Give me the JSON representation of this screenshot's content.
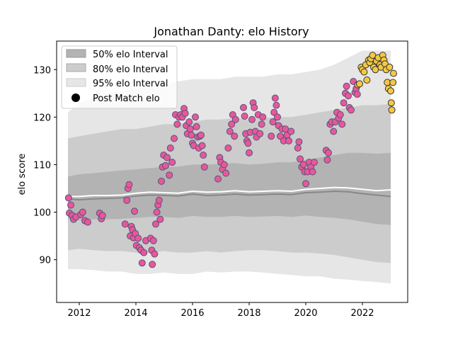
{
  "chart_data": {
    "type": "scatter",
    "title": "Jonathan Danty: elo History",
    "xlabel": "",
    "ylabel": "elo score",
    "xlim": [
      2011.2,
      2023.6
    ],
    "ylim": [
      81,
      136
    ],
    "x_ticks": [
      2012,
      2014,
      2016,
      2018,
      2020,
      2022
    ],
    "y_ticks": [
      90,
      100,
      110,
      120,
      130
    ],
    "legend": {
      "placement": "top-left",
      "entries": [
        "50% elo Interval",
        "80% elo Interval",
        "95% elo Interval",
        "Post Match elo"
      ]
    },
    "colors": {
      "band50": "#b3b3b3",
      "band80": "#cccccc",
      "band95": "#e6e6e6",
      "median_line": "#888888",
      "mean_line": "#ffffff",
      "point_fill": "#e8579b",
      "point_fill_recent": "#f4c842",
      "point_edge": "#555577"
    },
    "intervals": {
      "x": [
        2011.6,
        2012.0,
        2012.5,
        2013.0,
        2013.5,
        2014.0,
        2014.5,
        2015.0,
        2015.5,
        2016.0,
        2016.5,
        2017.0,
        2017.5,
        2018.0,
        2018.5,
        2019.0,
        2019.5,
        2020.0,
        2020.5,
        2021.0,
        2021.5,
        2022.0,
        2022.5,
        2023.0
      ],
      "median": [
        102.8,
        102.6,
        102.8,
        102.9,
        103.0,
        103.4,
        103.6,
        103.5,
        103.4,
        103.8,
        103.5,
        103.6,
        103.8,
        103.6,
        103.7,
        103.8,
        103.7,
        104.1,
        104.2,
        104.4,
        104.3,
        103.9,
        103.6,
        103.3
      ],
      "mean": [
        103.3,
        103.3,
        103.5,
        103.5,
        103.6,
        104.0,
        104.2,
        104.1,
        104.0,
        104.4,
        104.2,
        104.3,
        104.5,
        104.3,
        104.4,
        104.5,
        104.4,
        104.8,
        105.0,
        105.2,
        105.1,
        104.8,
        104.5,
        104.7
      ],
      "lo50": [
        98.5,
        98.3,
        98.5,
        98.5,
        98.6,
        98.8,
        99.0,
        99.0,
        98.8,
        99.2,
        99.0,
        99.0,
        99.2,
        99.0,
        99.1,
        99.2,
        99.0,
        99.3,
        99.0,
        98.8,
        98.5,
        98.0,
        97.5,
        97.3
      ],
      "hi50": [
        107.5,
        108.0,
        108.2,
        108.5,
        108.8,
        109.0,
        109.3,
        109.5,
        109.6,
        110.0,
        110.0,
        110.2,
        110.3,
        110.0,
        110.2,
        110.5,
        110.5,
        111.0,
        111.5,
        112.0,
        112.5,
        112.5,
        112.3,
        112.5
      ],
      "lo80": [
        92.0,
        92.3,
        92.0,
        91.8,
        91.8,
        91.5,
        91.5,
        91.8,
        91.5,
        91.5,
        91.8,
        91.5,
        91.8,
        92.0,
        92.0,
        91.8,
        91.5,
        91.5,
        91.3,
        91.0,
        90.5,
        90.0,
        89.5,
        89.3
      ],
      "hi80": [
        115.5,
        116.0,
        116.5,
        117.0,
        117.5,
        117.5,
        118.0,
        118.5,
        118.5,
        119.0,
        119.5,
        119.5,
        119.8,
        119.5,
        119.8,
        120.0,
        120.0,
        120.5,
        121.0,
        121.5,
        122.0,
        122.5,
        122.5,
        122.8
      ],
      "lo95": [
        88.0,
        88.0,
        87.8,
        87.5,
        87.5,
        87.0,
        87.0,
        87.3,
        87.0,
        87.0,
        87.5,
        87.3,
        87.5,
        87.5,
        87.3,
        87.0,
        86.8,
        86.5,
        86.5,
        86.0,
        85.8,
        85.5,
        85.3,
        85.0
      ],
      "hi95": [
        121.0,
        123.0,
        124.0,
        125.0,
        125.5,
        126.0,
        126.5,
        127.0,
        127.5,
        128.0,
        128.0,
        128.0,
        128.5,
        128.5,
        128.5,
        129.0,
        129.0,
        129.5,
        130.0,
        131.0,
        132.5,
        134.0,
        134.0,
        134.0
      ]
    },
    "points": [
      [
        2011.62,
        103.0
      ],
      [
        2011.65,
        99.8
      ],
      [
        2011.7,
        101.5
      ],
      [
        2011.75,
        99.3
      ],
      [
        2011.8,
        98.5
      ],
      [
        2011.88,
        99.0
      ],
      [
        2012.05,
        99.5
      ],
      [
        2012.12,
        100.0
      ],
      [
        2012.2,
        98.2
      ],
      [
        2012.3,
        97.9
      ],
      [
        2012.72,
        99.8
      ],
      [
        2012.78,
        98.6
      ],
      [
        2012.82,
        99.3
      ],
      [
        2013.62,
        97.5
      ],
      [
        2013.68,
        102.5
      ],
      [
        2013.72,
        105.0
      ],
      [
        2013.76,
        105.8
      ],
      [
        2013.8,
        95.0
      ],
      [
        2013.84,
        97.0
      ],
      [
        2013.88,
        96.3
      ],
      [
        2013.92,
        94.6
      ],
      [
        2013.95,
        100.2
      ],
      [
        2013.98,
        95.5
      ],
      [
        2014.02,
        93.0
      ],
      [
        2014.08,
        94.5
      ],
      [
        2014.12,
        92.5
      ],
      [
        2014.18,
        92.0
      ],
      [
        2014.22,
        89.3
      ],
      [
        2014.28,
        91.5
      ],
      [
        2014.35,
        94.0
      ],
      [
        2014.52,
        94.5
      ],
      [
        2014.56,
        92.0
      ],
      [
        2014.58,
        89.0
      ],
      [
        2014.62,
        94.0
      ],
      [
        2014.66,
        91.2
      ],
      [
        2014.7,
        97.5
      ],
      [
        2014.74,
        100.0
      ],
      [
        2014.78,
        101.5
      ],
      [
        2014.82,
        102.5
      ],
      [
        2014.86,
        98.5
      ],
      [
        2014.9,
        106.5
      ],
      [
        2014.94,
        109.5
      ],
      [
        2014.98,
        112.0
      ],
      [
        2015.05,
        109.8
      ],
      [
        2015.1,
        111.5
      ],
      [
        2015.18,
        107.8
      ],
      [
        2015.22,
        113.5
      ],
      [
        2015.28,
        110.5
      ],
      [
        2015.35,
        115.5
      ],
      [
        2015.4,
        120.5
      ],
      [
        2015.46,
        118.5
      ],
      [
        2015.52,
        120.0
      ],
      [
        2015.58,
        120.5
      ],
      [
        2015.64,
        120.0
      ],
      [
        2015.7,
        121.8
      ],
      [
        2015.74,
        120.8
      ],
      [
        2015.78,
        118.2
      ],
      [
        2015.82,
        116.5
      ],
      [
        2015.88,
        119.0
      ],
      [
        2015.92,
        117.5
      ],
      [
        2015.96,
        116.2
      ],
      [
        2016.0,
        114.5
      ],
      [
        2016.04,
        114.0
      ],
      [
        2016.1,
        120.0
      ],
      [
        2016.14,
        118.0
      ],
      [
        2016.18,
        115.8
      ],
      [
        2016.22,
        113.5
      ],
      [
        2016.26,
        116.0
      ],
      [
        2016.3,
        116.2
      ],
      [
        2016.34,
        114.0
      ],
      [
        2016.38,
        112.0
      ],
      [
        2016.42,
        109.5
      ],
      [
        2016.9,
        107.0
      ],
      [
        2016.96,
        111.5
      ],
      [
        2017.0,
        110.5
      ],
      [
        2017.06,
        109.0
      ],
      [
        2017.12,
        110.0
      ],
      [
        2017.18,
        108.2
      ],
      [
        2017.26,
        113.5
      ],
      [
        2017.32,
        117.0
      ],
      [
        2017.38,
        118.5
      ],
      [
        2017.42,
        120.5
      ],
      [
        2017.48,
        116.0
      ],
      [
        2017.52,
        119.5
      ],
      [
        2017.8,
        122.0
      ],
      [
        2017.84,
        120.2
      ],
      [
        2017.88,
        116.5
      ],
      [
        2017.92,
        115.0
      ],
      [
        2017.96,
        114.5
      ],
      [
        2018.0,
        112.5
      ],
      [
        2018.04,
        116.8
      ],
      [
        2018.1,
        119.5
      ],
      [
        2018.14,
        123.0
      ],
      [
        2018.18,
        122.0
      ],
      [
        2018.22,
        117.0
      ],
      [
        2018.26,
        115.8
      ],
      [
        2018.32,
        120.5
      ],
      [
        2018.38,
        116.5
      ],
      [
        2018.44,
        118.5
      ],
      [
        2018.48,
        120.0
      ],
      [
        2018.78,
        116.0
      ],
      [
        2018.84,
        119.0
      ],
      [
        2018.88,
        121.0
      ],
      [
        2018.92,
        124.0
      ],
      [
        2018.96,
        122.5
      ],
      [
        2019.0,
        120.0
      ],
      [
        2019.04,
        118.2
      ],
      [
        2019.1,
        116.0
      ],
      [
        2019.16,
        117.5
      ],
      [
        2019.22,
        115.0
      ],
      [
        2019.28,
        117.5
      ],
      [
        2019.34,
        116.2
      ],
      [
        2019.4,
        115.0
      ],
      [
        2019.48,
        117.0
      ],
      [
        2019.72,
        113.5
      ],
      [
        2019.76,
        114.8
      ],
      [
        2019.8,
        111.2
      ],
      [
        2019.86,
        109.5
      ],
      [
        2019.92,
        110.0
      ],
      [
        2019.96,
        108.5
      ],
      [
        2020.0,
        106.0
      ],
      [
        2020.06,
        108.5
      ],
      [
        2020.12,
        110.5
      ],
      [
        2020.18,
        109.5
      ],
      [
        2020.24,
        108.5
      ],
      [
        2020.3,
        110.5
      ],
      [
        2020.72,
        113.0
      ],
      [
        2020.76,
        111.0
      ],
      [
        2020.8,
        112.5
      ],
      [
        2020.86,
        118.5
      ],
      [
        2020.92,
        119.0
      ],
      [
        2020.98,
        117.0
      ],
      [
        2021.04,
        119.0
      ],
      [
        2021.1,
        121.0
      ],
      [
        2021.16,
        119.8
      ],
      [
        2021.22,
        120.5
      ],
      [
        2021.28,
        118.5
      ],
      [
        2021.34,
        123.0
      ],
      [
        2021.4,
        125.0
      ],
      [
        2021.44,
        126.5
      ],
      [
        2021.5,
        124.5
      ],
      [
        2021.54,
        122.0
      ],
      [
        2021.6,
        121.5
      ],
      [
        2021.68,
        127.5
      ],
      [
        2021.74,
        125.2
      ],
      [
        2021.78,
        126.0
      ],
      [
        2021.82,
        124.8
      ]
    ],
    "recent_points": [
      [
        2021.84,
        126.8
      ],
      [
        2021.9,
        127.0
      ],
      [
        2021.96,
        130.5
      ],
      [
        2022.0,
        130.0
      ],
      [
        2022.06,
        129.5
      ],
      [
        2022.12,
        131.0
      ],
      [
        2022.16,
        127.8
      ],
      [
        2022.22,
        132.0
      ],
      [
        2022.26,
        131.5
      ],
      [
        2022.3,
        132.3
      ],
      [
        2022.36,
        133.0
      ],
      [
        2022.4,
        130.5
      ],
      [
        2022.46,
        130.0
      ],
      [
        2022.5,
        131.8
      ],
      [
        2022.56,
        132.5
      ],
      [
        2022.62,
        131.0
      ],
      [
        2022.66,
        130.5
      ],
      [
        2022.72,
        133.0
      ],
      [
        2022.76,
        132.0
      ],
      [
        2022.8,
        131.2
      ],
      [
        2022.84,
        130.0
      ],
      [
        2022.88,
        127.3
      ],
      [
        2022.92,
        126.0
      ],
      [
        2022.96,
        130.5
      ],
      [
        2023.0,
        125.5
      ],
      [
        2023.02,
        123.0
      ],
      [
        2023.04,
        121.5
      ],
      [
        2023.08,
        127.3
      ],
      [
        2023.1,
        129.2
      ]
    ]
  }
}
